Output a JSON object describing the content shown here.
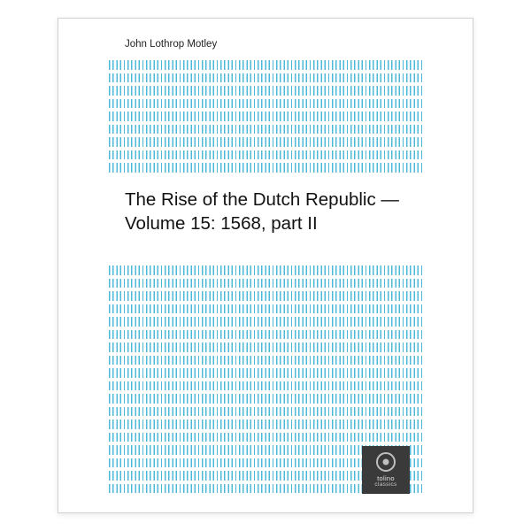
{
  "cover": {
    "author": "John Lothrop Motley",
    "title": "The Rise of the Dutch Republic — Volume 15: 1568, part II",
    "stripe_color": "#4db8d8",
    "background": "#ffffff",
    "top_stripe_rows": 9,
    "bottom_stripe_rows": 18,
    "title_fontsize": 20.5,
    "author_fontsize": 11.5
  },
  "logo": {
    "brand": "tolino",
    "sub": "classics",
    "box_color": "#3a3a3a",
    "ring_color": "#bfbfbf"
  }
}
